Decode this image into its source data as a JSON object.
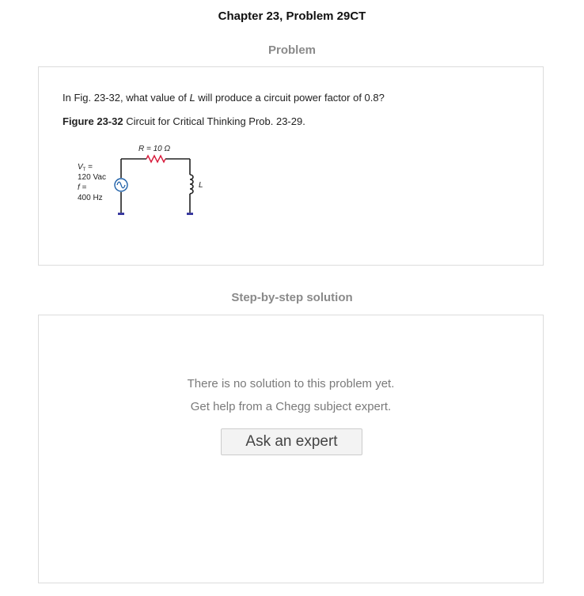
{
  "header": {
    "title": "Chapter 23, Problem 29CT"
  },
  "problem": {
    "heading": "Problem",
    "question_pre": "In Fig. 23-32, what value of ",
    "question_var": "L",
    "question_post": " will produce a circuit power factor of 0.8?",
    "figure_label": "Figure 23-32",
    "figure_text": " Circuit for Critical Thinking Prob. 23-29.",
    "circuit": {
      "resistor_label": "R = 10 Ω",
      "source_v_label": "V",
      "source_v_sub": "T",
      "source_v_eq": " =",
      "source_v_value": "120 Vac",
      "source_f_label": "f =",
      "source_f_value": "400 Hz",
      "inductor_label": "L",
      "colors": {
        "wire": "#222222",
        "resistor": "#d81b3c",
        "source": "#1d5fa8",
        "ground": "#3a3aa0"
      }
    }
  },
  "solution": {
    "heading": "Step-by-step solution",
    "message_line1": "There is no solution to this problem yet.",
    "message_line2": "Get help from a Chegg subject expert.",
    "ask_button_label": "Ask an expert"
  }
}
